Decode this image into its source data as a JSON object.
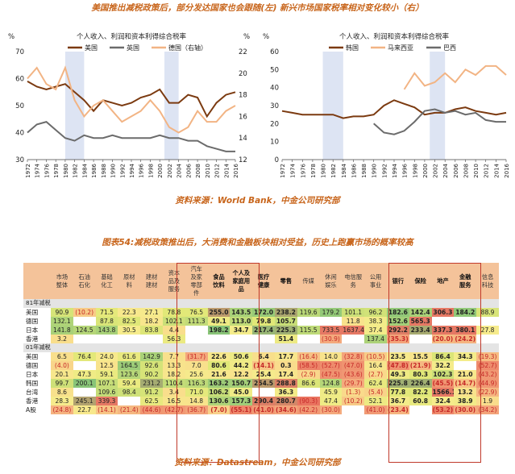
{
  "captions": {
    "top": "美国推出减税政策后，部分发达国家也会跟随(左) 新兴市场国家税率相对变化较小（右）",
    "fig54": "图表54:减税政策推出后，大消费和金融板块相对受益，历史上跑赢市场的概率较高",
    "source1": "资料来源：World Bank，中金公司研究部",
    "source2": "资料来源：Datastream，中金公司研究部"
  },
  "colors": {
    "caption": "#c8651b",
    "line_dark": "#7b3a10",
    "line_grey": "#6b6b6b",
    "line_peach": "#f2b484",
    "shade": "#dde4f3",
    "header_bg": "#f4c39a",
    "box": "#c0392b"
  },
  "chart_data": [
    {
      "type": "line",
      "title": "个人收入、利润和资本利得综合税率",
      "y_left_unit": "%",
      "y_right_unit": "%",
      "ylim_left": [
        30,
        70
      ],
      "ylim_right": [
        12,
        22
      ],
      "yticks_left": [
        "70",
        "60",
        "50",
        "40",
        "30"
      ],
      "yticks_right": [
        "22",
        "20",
        "18",
        "16",
        "14",
        "12"
      ],
      "x": [
        1972,
        1974,
        1976,
        1978,
        1980,
        1982,
        1984,
        1986,
        1988,
        1990,
        1992,
        1994,
        1996,
        1998,
        2000,
        2002,
        2004,
        2006,
        2008,
        2010,
        2012,
        2014,
        2016
      ],
      "xticks": [
        "1972",
        "1974",
        "1976",
        "1978",
        "1980",
        "1982",
        "1984",
        "1986",
        "1988",
        "1990",
        "1992",
        "1994",
        "1996",
        "1998",
        "2000",
        "2002",
        "2004",
        "2006",
        "2008",
        "2010",
        "2012",
        "2014",
        "2016"
      ],
      "shaded": [
        [
          1980,
          1984
        ],
        [
          2001,
          2004
        ]
      ],
      "series": [
        {
          "name": "美国",
          "axis": "left",
          "color": "#7b3a10",
          "values": [
            59,
            57,
            56,
            57,
            58,
            55,
            52,
            48,
            52,
            51,
            50,
            51,
            53,
            54,
            56,
            51,
            51,
            54,
            53,
            46,
            51,
            54,
            55
          ]
        },
        {
          "name": "英国",
          "axis": "left",
          "color": "#6b6b6b",
          "values": [
            40,
            43,
            44,
            41,
            38,
            37,
            39,
            38,
            38,
            39,
            38,
            38,
            38,
            38,
            39,
            38,
            38,
            37,
            37,
            35,
            34,
            33,
            33
          ]
        },
        {
          "name": "德国（右轴）",
          "axis": "right",
          "color": "#f2b484",
          "values": [
            19.5,
            20.5,
            19,
            18.5,
            20.5,
            17.5,
            16,
            17,
            17.5,
            16.5,
            15.5,
            16,
            16.5,
            17.5,
            16.5,
            15,
            14.5,
            15,
            16.5,
            15.5,
            15.5,
            16.5,
            17
          ]
        }
      ]
    },
    {
      "type": "line",
      "title": "个人收入、利润和资本利得综合税率",
      "y_left_unit": "%",
      "ylim_left": [
        0,
        60
      ],
      "yticks_left": [
        "60",
        "50",
        "40",
        "30",
        "20",
        "10",
        "0"
      ],
      "x": [
        1972,
        1974,
        1976,
        1978,
        1980,
        1982,
        1984,
        1986,
        1988,
        1990,
        1992,
        1994,
        1996,
        1998,
        2000,
        2002,
        2004,
        2006,
        2008,
        2010,
        2012,
        2014,
        2016
      ],
      "xticks": [
        "1972",
        "1974",
        "1976",
        "1978",
        "1980",
        "1982",
        "1984",
        "1986",
        "1988",
        "1990",
        "1992",
        "1994",
        "1996",
        "1998",
        "2000",
        "2002",
        "2004",
        "2006",
        "2008",
        "2010",
        "2012",
        "2014",
        "2016"
      ],
      "shaded": [
        [
          1980,
          1984
        ],
        [
          2001,
          2004
        ]
      ],
      "series": [
        {
          "name": "韩国",
          "color": "#7b3a10",
          "values": [
            27,
            26,
            25,
            25,
            25,
            25,
            23,
            24,
            24,
            25,
            30,
            33,
            31,
            29,
            25,
            26,
            26,
            28,
            29,
            27,
            26,
            25,
            26
          ]
        },
        {
          "name": "马来西亚",
          "color": "#f2b484",
          "values": [
            null,
            null,
            null,
            null,
            null,
            null,
            null,
            null,
            null,
            null,
            null,
            null,
            39,
            48,
            41,
            43,
            48,
            43,
            50,
            47,
            52,
            52,
            47
          ]
        },
        {
          "name": "巴西",
          "color": "#6b6b6b",
          "values": [
            null,
            null,
            null,
            null,
            null,
            null,
            null,
            null,
            null,
            20,
            15,
            14,
            16,
            21,
            27,
            28,
            26,
            27,
            25,
            26,
            22,
            21,
            21
          ]
        }
      ]
    }
  ],
  "table": {
    "headers": [
      "市场\n整体",
      "石油\n石化",
      "基础\n化工",
      "原材\n料",
      "建材\n建材",
      "资本\n品及\n服务",
      "汽车\n及家\n零部\n件",
      "食品\n饮料",
      "个人及\n家庭用\n品",
      "医疗\n健康",
      "零售",
      "传媒",
      "休闲\n娱乐",
      "电信服\n务",
      "公用\n事业",
      "银行",
      "保险",
      "地产",
      "金融\n服务",
      "信息\n科技"
    ],
    "bold_headers": [
      7,
      8,
      9,
      10,
      15,
      16,
      17,
      18
    ],
    "sections": [
      {
        "label": "81年减税",
        "rows": [
          {
            "name": "美国",
            "cells": [
              "90.9",
              "(10.2)",
              "71.5",
              "22.3",
              "27.1",
              "78.8",
              "76.5",
              "255.0",
              "143.5",
              "172.0",
              "238.2",
              "119.6",
              "179.2",
              "101.1",
              "96.2",
              "182.6",
              "142.4",
              "306.3",
              "184.2",
              "88.9"
            ]
          },
          {
            "name": "德国",
            "cells": [
              "132.1",
              "",
              "87.8",
              "82.5",
              "18.2",
              "102.1",
              "111.3",
              "49.1",
              "113.0",
              "79.8",
              "105.7",
              "",
              "",
              "11.8",
              "38.3",
              "152.6",
              "565.3",
              "",
              "",
              ""
            ]
          },
          {
            "name": "日本",
            "cells": [
              "141.8",
              "124.5",
              "143.8",
              "30.5",
              "83.8",
              "4.4",
              "",
              "198.2",
              "34.7",
              "217.4",
              "225.3",
              "115.5",
              "733.5",
              "1637.4",
              "37.4",
              "292.2",
              "233.4",
              "337.3",
              "380.1",
              "27.8"
            ]
          },
          {
            "name": "香港",
            "cells": [
              "3.2",
              "",
              "",
              "",
              "",
              "56.3",
              "",
              "",
              "",
              "",
              "51.4",
              "",
              "(30.9)",
              "",
              "137.4",
              "(35.3)",
              "",
              "(20.0)",
              "(24.2)",
              ""
            ]
          }
        ]
      },
      {
        "label": "01年减税",
        "rows": [
          {
            "name": "美国",
            "cells": [
              "6.5",
              "76.4",
              "24.0",
              "61.6",
              "142.9",
              "7.7",
              "(31.7)",
              "22.6",
              "50.6",
              "6.4",
              "17.7",
              "(16.4)",
              "14.0",
              "(32.8)",
              "(10.5)",
              "23.5",
              "15.5",
              "86.4",
              "34.3",
              "(19.3)"
            ]
          },
          {
            "name": "德国",
            "cells": [
              "(4.0)",
              "",
              "12.5",
              "164.5",
              "92.6",
              "13.3",
              "7.0",
              "80.6",
              "44.2",
              "(14.1)",
              "0.3",
              "(58.5)",
              "(52.7)",
              "(47.0)",
              "16.4",
              "(47.8)",
              "(21.9)",
              "32.2",
              "",
              "(52.7)"
            ]
          },
          {
            "name": "日本",
            "cells": [
              "20.1",
              "47.3",
              "59.1",
              "123.6",
              "90.2",
              "18.2",
              "25.6",
              "21.6",
              "12.2",
              "25.4",
              "17.4",
              "(2.9)",
              "(47.5)",
              "(43.6)",
              "(2.7)",
              "49.3",
              "80.3",
              "102.3",
              "21.0",
              "(43.2)"
            ]
          },
          {
            "name": "韩国",
            "cells": [
              "99.7",
              "200.1",
              "107.1",
              "59.4",
              "231.2",
              "110.4",
              "116.3",
              "163.2",
              "150.7",
              "254.5",
              "288.8",
              "86.6",
              "124.8",
              "(29.7)",
              "62.4",
              "225.8",
              "226.4",
              "(45.5)",
              "(14.7)",
              "(44.9)"
            ]
          },
          {
            "name": "台湾",
            "cells": [
              "8.6",
              "",
              "109.6",
              "98.4",
              "91.2",
              "3.4",
              "71.0",
              "106.2",
              "45.0",
              "",
              "36.3",
              "",
              "45.9",
              "(1.3)",
              "(5.4)",
              "77.8",
              "82.2",
              "1566.1",
              "13.2",
              "(22.9)"
            ]
          },
          {
            "name": "香港",
            "cells": [
              "28.3",
              "245.1",
              "339.3",
              "",
              "62.5",
              "16.5",
              "14.8",
              "130.6",
              "157.3",
              "290.4",
              "280.7",
              "(90.3)",
              "47.4",
              "(10.2)",
              "52.1",
              "36.7",
              "60.8",
              "32.4",
              "38.9",
              "1.9"
            ]
          },
          {
            "name": "A股",
            "cells": [
              "(24.8)",
              "22.7",
              "(14.1)",
              "(21.4)",
              "(44.6)",
              "(42.7)",
              "(36.7)",
              "(7.0)",
              "(55.1)",
              "(41.0)",
              "(34.6)",
              "(42.2)",
              "(30.0)",
              "",
              "(41.0)",
              "(23.4)",
              "",
              "(53.2)",
              "(30.0)",
              "(34.2)"
            ]
          }
        ]
      }
    ]
  }
}
